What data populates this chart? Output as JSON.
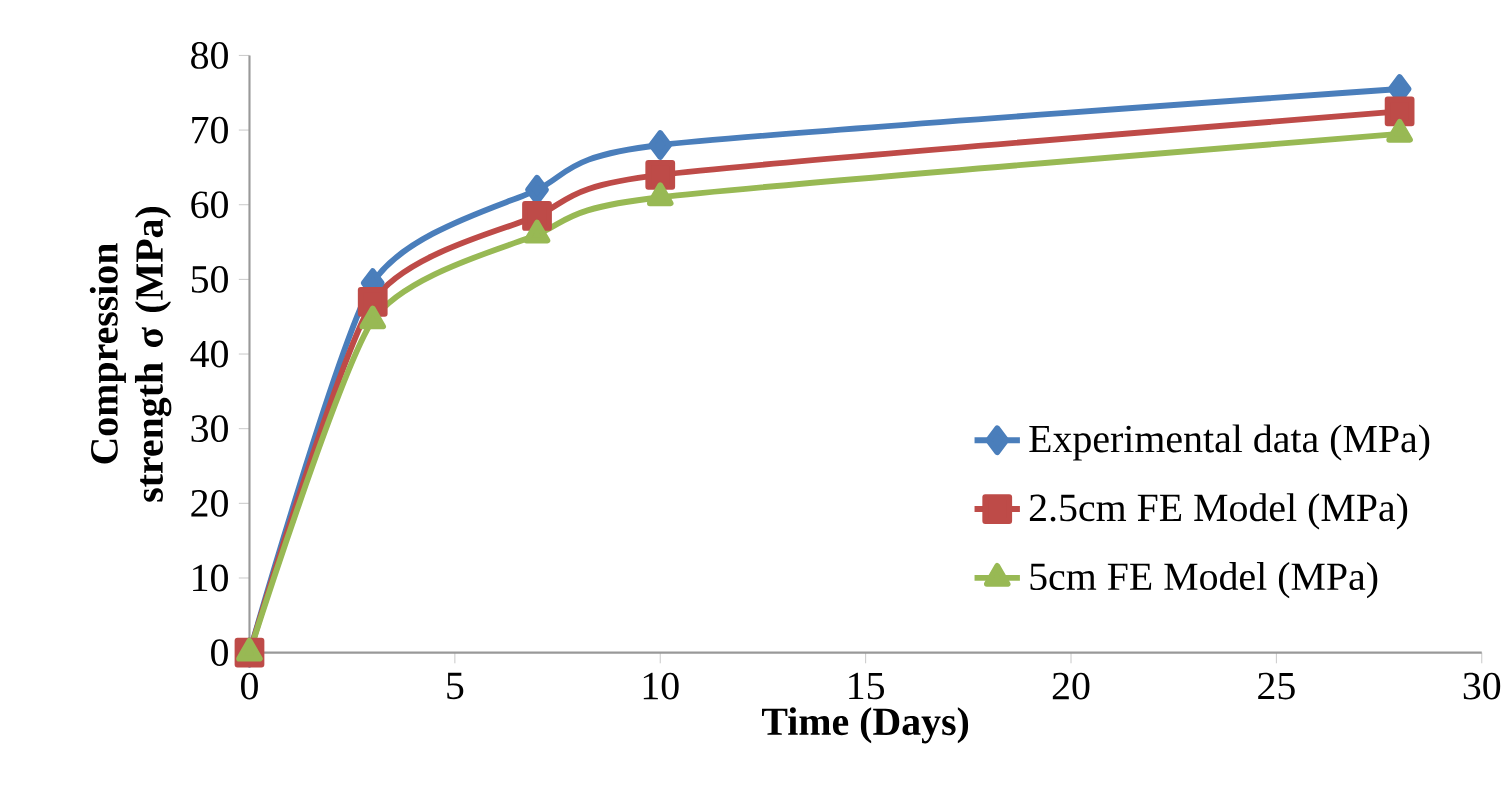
{
  "chart_data": {
    "type": "line",
    "xlabel": "Time (Days)",
    "ylabel": "Compression strength σ (MPa)",
    "x": [
      0,
      3,
      7,
      10,
      28
    ],
    "series": [
      {
        "name": "Experimental data (MPa)",
        "color": "#4a7ebb",
        "marker": "diamond",
        "values": [
          0,
          49.5,
          62,
          68,
          75.5
        ]
      },
      {
        "name": "2.5cm FE Model (MPa)",
        "color": "#be4b48",
        "marker": "square",
        "values": [
          0,
          47,
          58.5,
          64,
          72.5
        ]
      },
      {
        "name": "5cm FE Model (MPa)",
        "color": "#98b954",
        "marker": "triangle",
        "values": [
          0,
          44.5,
          56,
          61,
          69.5
        ]
      }
    ],
    "xlim": [
      0,
      30
    ],
    "xticks": [
      0,
      5,
      10,
      15,
      20,
      25,
      30
    ],
    "ylim": [
      0,
      80
    ],
    "yticks": [
      0,
      10,
      20,
      30,
      40,
      50,
      60,
      70,
      80
    ],
    "grid": false,
    "legend": "bottom right",
    "line_style": "solid"
  }
}
